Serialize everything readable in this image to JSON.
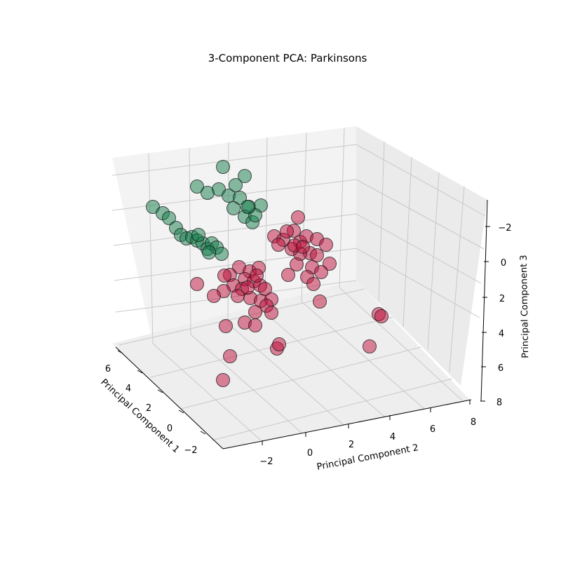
{
  "chart_data": {
    "type": "scatter",
    "title": "3-Component PCA: Parkinsons",
    "xlabel": "Principal Component 1",
    "ylabel": "Principal Component 2",
    "zlabel": "Principal Component 3",
    "x_ticks": [
      "6",
      "4",
      "2",
      "0",
      "−2"
    ],
    "y_ticks": [
      "−2",
      "0",
      "2",
      "4",
      "6",
      "8"
    ],
    "z_ticks": [
      "−2",
      "0",
      "2",
      "4",
      "6",
      "8"
    ],
    "grid": true,
    "legend": "none",
    "colors": {
      "green": "#137d4b",
      "red": "#c0103c",
      "edge": "#1a1a1a",
      "pane": "#f2f2f2",
      "grid": "#c8c8c8"
    },
    "series": [
      {
        "color": "#137d4b",
        "points": [
          [
            218,
            295
          ],
          [
            232,
            304
          ],
          [
            241,
            311
          ],
          [
            251,
            325
          ],
          [
            258,
            335
          ],
          [
            266,
            340
          ],
          [
            274,
            338
          ],
          [
            281,
            343
          ],
          [
            289,
            347
          ],
          [
            296,
            355
          ],
          [
            302,
            347
          ],
          [
            309,
            353
          ],
          [
            316,
            362
          ],
          [
            298,
            360
          ],
          [
            283,
            335
          ],
          [
            318,
            238
          ],
          [
            349,
            251
          ],
          [
            336,
            264
          ],
          [
            281,
            266
          ],
          [
            296,
            275
          ],
          [
            312,
            270
          ],
          [
            326,
            279
          ],
          [
            342,
            282
          ],
          [
            355,
            295
          ],
          [
            333,
            297
          ],
          [
            349,
            309
          ],
          [
            360,
            317
          ],
          [
            372,
            293
          ],
          [
            364,
            307
          ],
          [
            353,
            295
          ]
        ]
      },
      {
        "color": "#c0103c",
        "points": [
          [
            425,
            310
          ],
          [
            391,
            337
          ],
          [
            404,
            342
          ],
          [
            419,
            329
          ],
          [
            428,
            345
          ],
          [
            437,
            337
          ],
          [
            452,
            341
          ],
          [
            465,
            349
          ],
          [
            442,
            361
          ],
          [
            428,
            362
          ],
          [
            416,
            355
          ],
          [
            452,
            364
          ],
          [
            470,
            376
          ],
          [
            445,
            381
          ],
          [
            458,
            388
          ],
          [
            438,
            395
          ],
          [
            447,
            405
          ],
          [
            423,
            377
          ],
          [
            411,
            392
          ],
          [
            420,
            350
          ],
          [
            432,
            352
          ],
          [
            409,
            330
          ],
          [
            397,
            349
          ],
          [
            341,
            381
          ],
          [
            356,
            387
          ],
          [
            369,
            382
          ],
          [
            328,
            392
          ],
          [
            349,
            398
          ],
          [
            362,
            401
          ],
          [
            333,
            407
          ],
          [
            345,
            412
          ],
          [
            371,
            407
          ],
          [
            378,
            412
          ],
          [
            319,
            415
          ],
          [
            339,
            422
          ],
          [
            357,
            425
          ],
          [
            372,
            429
          ],
          [
            387,
            427
          ],
          [
            380,
            436
          ],
          [
            387,
            446
          ],
          [
            364,
            445
          ],
          [
            320,
            393
          ],
          [
            353,
            410
          ],
          [
            366,
            393
          ],
          [
            281,
            405
          ],
          [
            305,
            422
          ],
          [
            456,
            430
          ],
          [
            322,
            465
          ],
          [
            349,
            460
          ],
          [
            364,
            464
          ],
          [
            328,
            508
          ],
          [
            395,
            497
          ],
          [
            398,
            491
          ],
          [
            318,
            542
          ],
          [
            540,
            448
          ],
          [
            544,
            451
          ],
          [
            527,
            494
          ]
        ]
      }
    ]
  }
}
